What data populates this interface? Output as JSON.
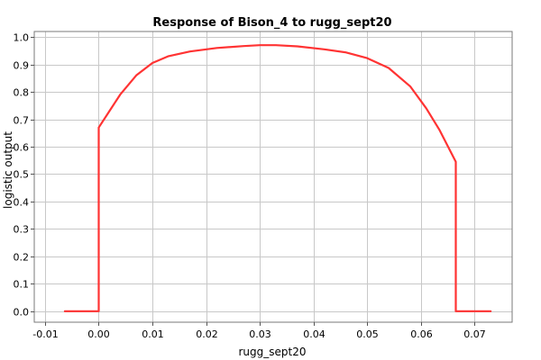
{
  "chart_data": {
    "type": "line",
    "title": "Response of Bison_4 to rugg_sept20",
    "xlabel": "rugg_sept20",
    "ylabel": "logistic output",
    "xlim": [
      -0.012,
      0.077
    ],
    "ylim": [
      -0.04,
      1.02
    ],
    "xticks": [
      -0.01,
      0.0,
      0.01,
      0.02,
      0.03,
      0.04,
      0.05,
      0.06,
      0.07
    ],
    "xtick_labels": [
      "-0.01",
      "0.00",
      "0.01",
      "0.02",
      "0.03",
      "0.04",
      "0.05",
      "0.06",
      "0.07"
    ],
    "yticks": [
      0.0,
      0.1,
      0.2,
      0.3,
      0.4,
      0.5,
      0.6,
      0.7,
      0.8,
      0.9,
      1.0
    ],
    "ytick_labels": [
      "0.0",
      "0.1",
      "0.2",
      "0.3",
      "0.4",
      "0.5",
      "0.6",
      "0.7",
      "0.8",
      "0.9",
      "1.0"
    ],
    "grid": true,
    "series": [
      {
        "color": "#ff3333",
        "x": [
          -0.0063,
          0.0,
          0.0,
          0.002,
          0.004,
          0.007,
          0.01,
          0.013,
          0.017,
          0.022,
          0.027,
          0.03,
          0.033,
          0.037,
          0.042,
          0.046,
          0.05,
          0.054,
          0.058,
          0.061,
          0.0635,
          0.0665,
          0.0665,
          0.073
        ],
        "y": [
          0.0,
          0.0,
          0.67,
          0.73,
          0.79,
          0.86,
          0.905,
          0.93,
          0.947,
          0.96,
          0.967,
          0.97,
          0.97,
          0.966,
          0.955,
          0.944,
          0.923,
          0.887,
          0.82,
          0.74,
          0.66,
          0.545,
          0.0,
          0.0
        ]
      }
    ]
  }
}
